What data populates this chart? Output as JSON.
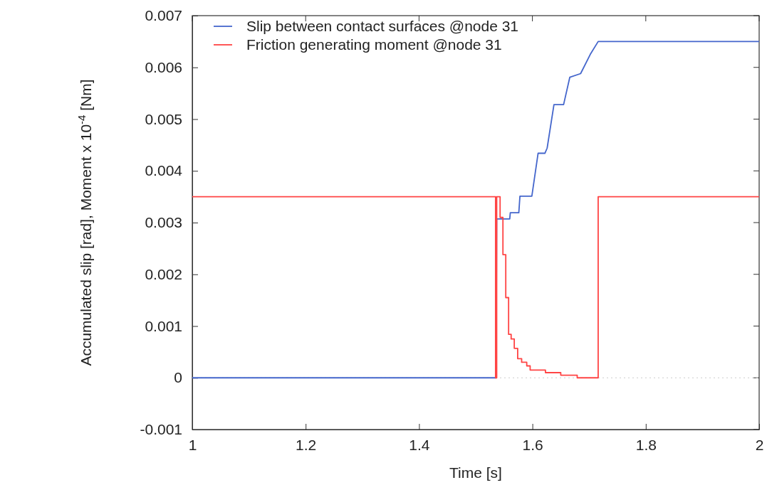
{
  "chart_data": {
    "type": "line",
    "xlabel": "Time [s]",
    "ylabel": "Accumulated slip [rad], Moment x 10$^{-4}$ [Nm]",
    "xlim": [
      1,
      2
    ],
    "xticks": [
      1,
      1.2,
      1.4,
      1.6,
      1.8,
      2
    ],
    "ylim": [
      -0.001,
      0.007
    ],
    "yticks": [
      -0.001,
      0,
      0.001,
      0.002,
      0.003,
      0.004,
      0.005,
      0.006,
      0.007
    ],
    "legend": "top left",
    "marker": "none",
    "line_style": "solid",
    "ref_lines": [
      {
        "axis": "y",
        "value": 0,
        "color": "#cccccc",
        "line_style": "dotted"
      }
    ],
    "series": [
      {
        "name": "Slip between contact surfaces @node 31",
        "color": "#4466cc",
        "x": [
          1,
          1.536,
          1.537,
          1.56,
          1.561,
          1.576,
          1.578,
          1.599,
          1.61,
          1.622,
          1.626,
          1.638,
          1.655,
          1.666,
          1.685,
          1.702,
          1.716,
          2
        ],
        "values": [
          0,
          0,
          0.00307,
          0.00307,
          0.00319,
          0.00319,
          0.00351,
          0.00351,
          0.00434,
          0.00434,
          0.00444,
          0.00528,
          0.00528,
          0.00581,
          0.00588,
          0.00625,
          0.0065,
          0.0065
        ]
      },
      {
        "name": "Friction generating moment @node 31",
        "color": "#ff4444",
        "type": "step",
        "x": [
          1,
          1.535,
          1.537,
          1.543,
          1.548,
          1.553,
          1.558,
          1.5625,
          1.568,
          1.574,
          1.581,
          1.59,
          1.596,
          1.623,
          1.65,
          1.679,
          1.716,
          2
        ],
        "values": [
          0.0035,
          0,
          0.0035,
          0.0031,
          0.00238,
          0.00155,
          0.00084,
          0.00075,
          0.00057,
          0.00037,
          0.0003,
          0.00023,
          0.00015,
          0.0001,
          5e-05,
          0,
          0.0035,
          0.0035
        ]
      }
    ]
  }
}
